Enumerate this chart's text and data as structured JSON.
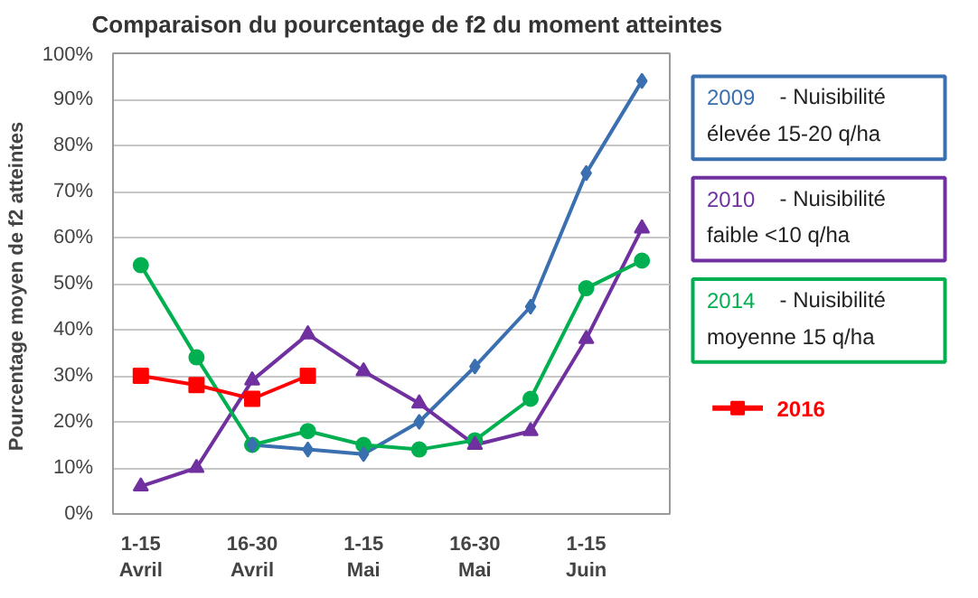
{
  "chart_data": {
    "type": "line",
    "title": "Comparaison du pourcentage de f2 du moment atteintes",
    "ylabel": "Pourcentage  moyen de f2 atteintes",
    "categories": [
      "1-15 Avril",
      null,
      "16-30 Avril",
      null,
      "1-15 Mai",
      null,
      "16-30 Mai",
      null,
      "1-15 Juin",
      null
    ],
    "ylim": [
      0,
      100
    ],
    "yticks": [
      {
        "value": 0,
        "label": "0%"
      },
      {
        "value": 10,
        "label": "10%"
      },
      {
        "value": 20,
        "label": "20%"
      },
      {
        "value": 30,
        "label": "30%"
      },
      {
        "value": 40,
        "label": "40%"
      },
      {
        "value": 50,
        "label": "50%"
      },
      {
        "value": 60,
        "label": "60%"
      },
      {
        "value": 70,
        "label": "70%"
      },
      {
        "value": 80,
        "label": "80%"
      },
      {
        "value": 90,
        "label": "90%"
      },
      {
        "value": 100,
        "label": "100%"
      }
    ],
    "grid": "y",
    "legend": "right",
    "series": [
      {
        "name": "2009 - Nuisibilité élevée 15-20 q/ha",
        "color": "#3a6fb0",
        "marker": "diamond",
        "values": [
          null,
          null,
          15,
          14,
          13,
          20,
          32,
          45,
          74,
          94
        ]
      },
      {
        "name": "2010 - Nuisibilité faible <10 q/ha",
        "color": "#7030a0",
        "marker": "triangle",
        "values": [
          6,
          10,
          29,
          39,
          31,
          24,
          15,
          18,
          38,
          62
        ]
      },
      {
        "name": "2014 - Nuisibilité moyenne 15 q/ha",
        "color": "#00b050",
        "marker": "circle",
        "values": [
          54,
          34,
          15,
          18,
          15,
          14,
          16,
          25,
          49,
          55
        ]
      },
      {
        "name": "2016",
        "color": "#ff0000",
        "marker": "square",
        "values": [
          30,
          28,
          25,
          30,
          null,
          null,
          null,
          null,
          null,
          null
        ]
      }
    ]
  }
}
